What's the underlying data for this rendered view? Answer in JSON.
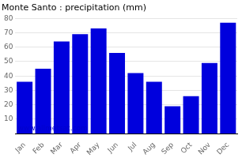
{
  "chart_data": {
    "type": "bar",
    "title": "Monte Santo : precipitation (mm)",
    "categories": [
      "Jan",
      "Feb",
      "Mar",
      "Apr",
      "May",
      "Jun",
      "Jul",
      "Aug",
      "Sep",
      "Oct",
      "Nov",
      "Dec"
    ],
    "values": [
      36,
      45,
      64,
      69,
      73,
      56,
      42,
      36,
      19,
      26,
      49,
      77
    ],
    "color": "#0000dd",
    "ylim": [
      0,
      80
    ],
    "yticks": [
      10,
      20,
      30,
      40,
      50,
      60,
      70,
      80
    ],
    "grid": true,
    "annotations": [
      {
        "text": "www.allmetsat.com",
        "color": "#0000cc"
      }
    ]
  }
}
